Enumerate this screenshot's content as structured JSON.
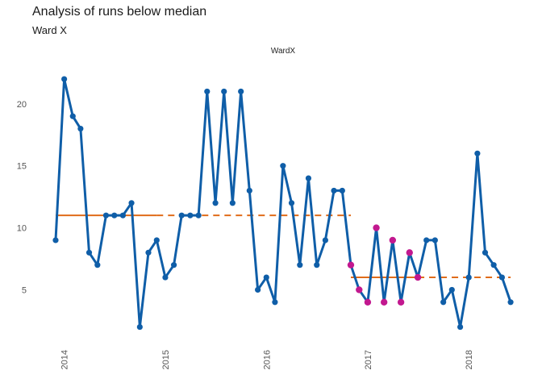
{
  "chart_data": {
    "type": "line",
    "title": "Analysis of runs below median",
    "subtitle": "Ward X",
    "facet_label": "WardX",
    "xlabel": "",
    "ylabel": "",
    "ylim": [
      0.8,
      23.5
    ],
    "xlim": [
      "2013-12-01",
      "2018-07-01"
    ],
    "y_ticks": [
      5,
      10,
      15,
      20
    ],
    "x_ticks": [
      {
        "date": "2014-01-01",
        "label": "2014"
      },
      {
        "date": "2015-01-01",
        "label": "2015"
      },
      {
        "date": "2016-01-01",
        "label": "2016"
      },
      {
        "date": "2017-01-01",
        "label": "2017"
      },
      {
        "date": "2018-01-01",
        "label": "2018"
      }
    ],
    "grid": false,
    "series": [
      {
        "x": [
          "2013-12-01",
          "2014-01-01",
          "2014-02-01",
          "2014-03-01",
          "2014-04-01",
          "2014-05-01",
          "2014-06-01",
          "2014-07-01",
          "2014-08-01",
          "2014-09-01",
          "2014-10-01",
          "2014-11-01",
          "2014-12-01",
          "2015-01-01",
          "2015-02-01",
          "2015-03-01",
          "2015-04-01",
          "2015-05-01",
          "2015-06-01",
          "2015-07-01",
          "2015-08-01",
          "2015-09-01",
          "2015-10-01",
          "2015-11-01",
          "2015-12-01",
          "2016-01-01",
          "2016-02-01",
          "2016-03-01",
          "2016-04-01",
          "2016-05-01",
          "2016-06-01",
          "2016-07-01",
          "2016-08-01",
          "2016-09-01",
          "2016-10-01",
          "2016-11-01",
          "2016-12-01",
          "2017-01-01",
          "2017-02-01",
          "2017-03-01",
          "2017-04-01",
          "2017-05-01",
          "2017-06-01",
          "2017-07-01",
          "2017-08-01",
          "2017-09-01",
          "2017-10-01",
          "2017-11-01",
          "2017-12-01",
          "2018-01-01",
          "2018-02-01",
          "2018-03-01",
          "2018-04-01",
          "2018-05-01",
          "2018-06-01"
        ],
        "values": [
          9,
          22,
          19,
          18,
          8,
          7,
          11,
          11,
          11,
          12,
          2,
          8,
          9,
          6,
          7,
          11,
          11,
          11,
          21,
          12,
          21,
          12,
          21,
          13,
          5,
          6,
          4,
          15,
          12,
          7,
          14,
          7,
          9,
          13,
          13,
          7,
          5,
          4,
          10,
          4,
          9,
          4,
          8,
          6,
          9,
          9,
          4,
          5,
          2,
          6,
          16,
          8,
          7,
          6,
          4
        ],
        "color": "#0f5ea8"
      }
    ],
    "highlight_points": {
      "color": "#c2188f",
      "x": [
        "2016-11-01",
        "2016-12-01",
        "2017-01-01",
        "2017-02-01",
        "2017-03-01",
        "2017-04-01",
        "2017-05-01",
        "2017-06-01",
        "2017-07-01"
      ],
      "values": [
        7,
        5,
        4,
        10,
        4,
        9,
        4,
        8,
        6
      ]
    },
    "median_lines": [
      {
        "value": 11,
        "solid_from": "2013-12-01",
        "solid_to": "2014-12-01",
        "dashed_to": "2016-11-01",
        "color": "#e06c1a"
      },
      {
        "value": 6,
        "solid_from": "2016-11-01",
        "solid_to": "2017-07-01",
        "dashed_to": "2018-06-01",
        "color": "#e06c1a"
      }
    ]
  }
}
